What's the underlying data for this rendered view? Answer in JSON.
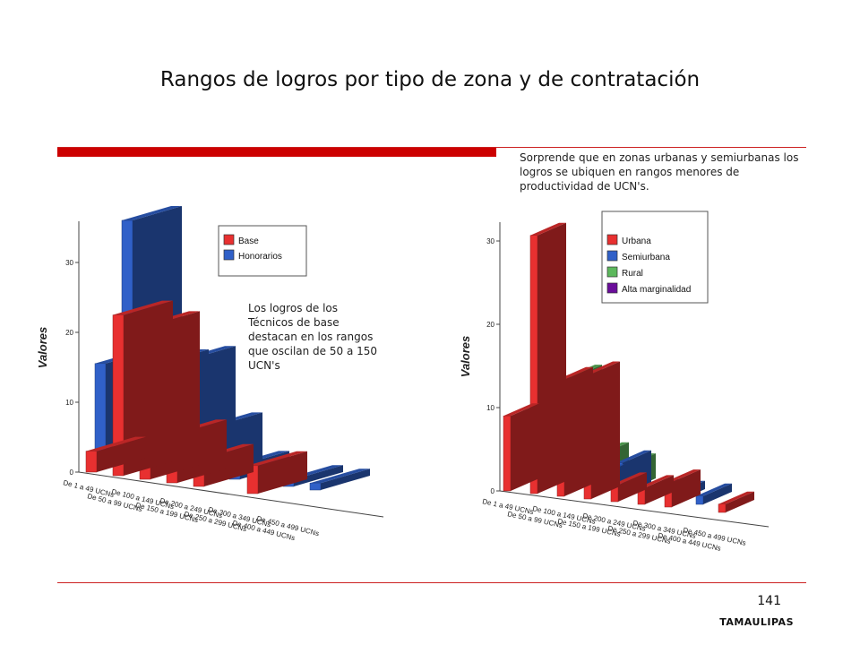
{
  "page": {
    "title": "Rangos de logros por tipo de zona y de contratación",
    "note_right": "Sorprende que en zonas urbanas y semiurbanas los logros se ubiquen en rangos menores de productividad  de UCN's.",
    "note_left": "Los logros de los Técnicos de base destacan en los rangos que oscilan de 50 a 150 UCN's",
    "page_number": "141",
    "footer": "TAMAULIPAS"
  },
  "chart_data": [
    {
      "type": "bar",
      "categories": [
        "De 1 a 49 UCNs",
        "De 50 a 99 UCNs",
        "De 100 a 149 UCNs",
        "De 150 a 199 UCNs",
        "De 200 a 249 UCNs",
        "De 250 a 299 UCNs",
        "De 300 a 349 UCNs",
        "De 400 a 449 UCNs",
        "De 450 a 499 UCNs"
      ],
      "ylabel": "Valores",
      "yticks": [
        "0",
        "10",
        "20",
        "30"
      ],
      "ylim": [
        0,
        35
      ],
      "series": [
        {
          "name": "Base",
          "color": "#e83030",
          "values": [
            3,
            23,
            22,
            7,
            4,
            0,
            4,
            0,
            0
          ]
        },
        {
          "name": "Honorarios",
          "color": "#3060c8",
          "values": [
            14,
            35,
            15,
            16,
            7,
            2,
            0,
            1,
            1
          ]
        }
      ],
      "legend": "top-right",
      "three_d": true
    },
    {
      "type": "bar",
      "categories": [
        "De 1 a 49 UCNs",
        "De 50 a 99 UCNs",
        "De 100 a 149 UCNs",
        "De 150 a 199 UCNs",
        "De 200 a 249 UCNs",
        "De 250 a 299 UCNs",
        "De 300 a 349 UCNs",
        "De 400 a 449 UCNs",
        "De 450 a 499 UCNs"
      ],
      "ylabel": "Valores",
      "yticks": [
        "0",
        "10",
        "20",
        "30"
      ],
      "ylim": [
        0,
        32
      ],
      "series": [
        {
          "name": "Urbana",
          "color": "#e83030",
          "values": [
            9,
            31,
            14,
            15,
            2,
            2,
            3,
            0,
            1
          ]
        },
        {
          "name": "Semiurbana",
          "color": "#3060c8",
          "values": [
            3,
            12,
            8,
            2,
            4,
            1,
            1,
            1,
            0
          ]
        },
        {
          "name": "Rural",
          "color": "#5cb85c",
          "values": [
            4,
            10,
            13,
            4,
            3,
            0,
            0,
            0,
            0
          ]
        },
        {
          "name": "Alta marginalidad",
          "color": "#6a0d9a",
          "values": [
            1,
            5,
            1,
            0,
            0,
            0,
            0,
            0,
            0
          ]
        }
      ],
      "legend": "top-right",
      "three_d": true
    }
  ]
}
